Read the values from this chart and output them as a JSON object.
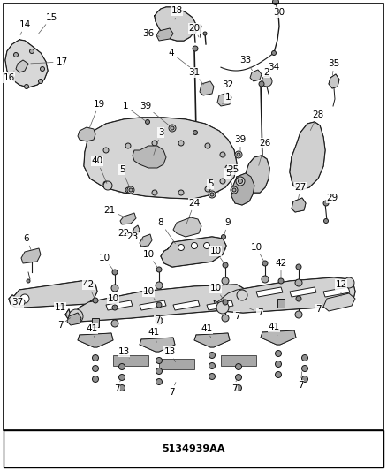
{
  "background_color": "#ffffff",
  "border_color": "#000000",
  "part_label_fontsize": 7.5,
  "line_color": "#1a1a1a",
  "figsize": [
    4.38,
    5.33
  ],
  "dpi": 100,
  "title_text": "5134939AA",
  "title_fontsize": 8
}
